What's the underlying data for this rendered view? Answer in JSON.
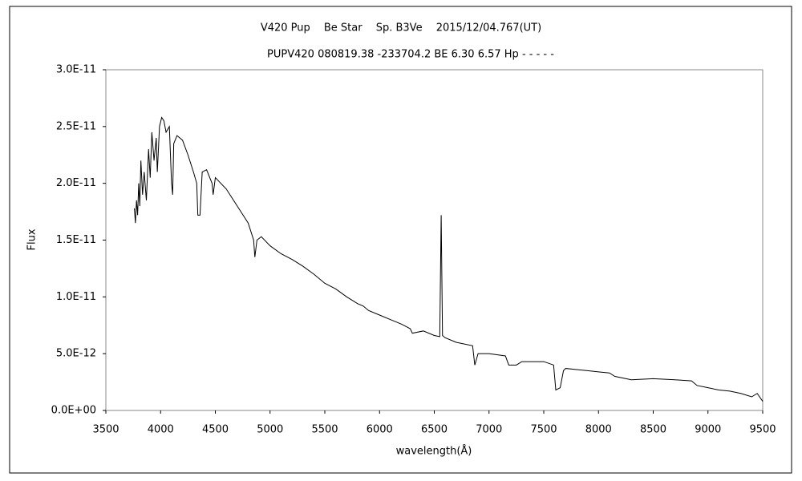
{
  "chart_data": {
    "type": "line",
    "title": "V420 Pup　 Be Star　 Sp. B3Ve　 2015/12/04.767(UT)",
    "subtitle": "PUPV420 080819.38 -233704.2 BE 6.30 6.57 Hp - - - - -",
    "x_label": "wavelength(Å)",
    "y_label": "Flux",
    "xlim": [
      3500,
      9500
    ],
    "xticks": [
      3500,
      4000,
      4500,
      5000,
      5500,
      6000,
      6500,
      7000,
      7500,
      8000,
      8500,
      9000,
      9500
    ],
    "ylim": [
      0,
      3e-11
    ],
    "yticks": [
      {
        "value": 0,
        "label": "0.0E+00"
      },
      {
        "value": 5e-12,
        "label": "5.0E-12"
      },
      {
        "value": 1e-11,
        "label": "1.0E-11"
      },
      {
        "value": 1.5e-11,
        "label": "1.5E-11"
      },
      {
        "value": 2e-11,
        "label": "2.0E-11"
      },
      {
        "value": 2.5e-11,
        "label": "2.5E-11"
      },
      {
        "value": 3e-11,
        "label": "3.0E-11"
      }
    ],
    "grid": false,
    "x": [
      3760,
      3770,
      3780,
      3790,
      3800,
      3810,
      3820,
      3835,
      3850,
      3870,
      3890,
      3905,
      3920,
      3940,
      3960,
      3970,
      3990,
      4010,
      4030,
      4050,
      4080,
      4100,
      4110,
      4120,
      4150,
      4200,
      4250,
      4300,
      4330,
      4340,
      4360,
      4380,
      4420,
      4470,
      4480,
      4500,
      4600,
      4700,
      4800,
      4850,
      4861,
      4880,
      4920,
      5000,
      5100,
      5200,
      5300,
      5400,
      5500,
      5600,
      5700,
      5800,
      5850,
      5900,
      6000,
      6100,
      6200,
      6280,
      6300,
      6400,
      6500,
      6550,
      6563,
      6575,
      6600,
      6700,
      6850,
      6870,
      6900,
      7000,
      7150,
      7180,
      7250,
      7300,
      7500,
      7590,
      7610,
      7650,
      7680,
      7700,
      7800,
      7900,
      8000,
      8100,
      8150,
      8300,
      8500,
      8700,
      8850,
      8900,
      9000,
      9100,
      9200,
      9300,
      9400,
      9450,
      9500
    ],
    "series": [
      {
        "color": "#000000",
        "values": [
          1.78e-11,
          1.65e-11,
          1.85e-11,
          1.72e-11,
          2e-11,
          1.8e-11,
          2.2e-11,
          1.9e-11,
          2.1e-11,
          1.85e-11,
          2.3e-11,
          2.05e-11,
          2.45e-11,
          2.2e-11,
          2.4e-11,
          2.1e-11,
          2.5e-11,
          2.58e-11,
          2.55e-11,
          2.45e-11,
          2.5e-11,
          2e-11,
          1.9e-11,
          2.35e-11,
          2.42e-11,
          2.38e-11,
          2.25e-11,
          2.1e-11,
          2e-11,
          1.72e-11,
          1.72e-11,
          2.1e-11,
          2.12e-11,
          2e-11,
          1.9e-11,
          2.05e-11,
          1.95e-11,
          1.8e-11,
          1.65e-11,
          1.5e-11,
          1.35e-11,
          1.5e-11,
          1.53e-11,
          1.45e-11,
          1.38e-11,
          1.33e-11,
          1.27e-11,
          1.2e-11,
          1.12e-11,
          1.07e-11,
          1e-11,
          9.4e-12,
          9.2e-12,
          8.8e-12,
          8.4e-12,
          8e-12,
          7.6e-12,
          7.2e-12,
          6.8e-12,
          7e-12,
          6.6e-12,
          6.5e-12,
          1.72e-11,
          6.6e-12,
          6.4e-12,
          6e-12,
          5.7e-12,
          4e-12,
          5e-12,
          5e-12,
          4.8e-12,
          4e-12,
          4e-12,
          4.3e-12,
          4.3e-12,
          4e-12,
          1.8e-12,
          2e-12,
          3.5e-12,
          3.7e-12,
          3.6e-12,
          3.5e-12,
          3.4e-12,
          3.3e-12,
          3e-12,
          2.7e-12,
          2.8e-12,
          2.7e-12,
          2.6e-12,
          2.2e-12,
          2e-12,
          1.8e-12,
          1.7e-12,
          1.5e-12,
          1.2e-12,
          1.5e-12,
          8e-13
        ]
      }
    ]
  }
}
